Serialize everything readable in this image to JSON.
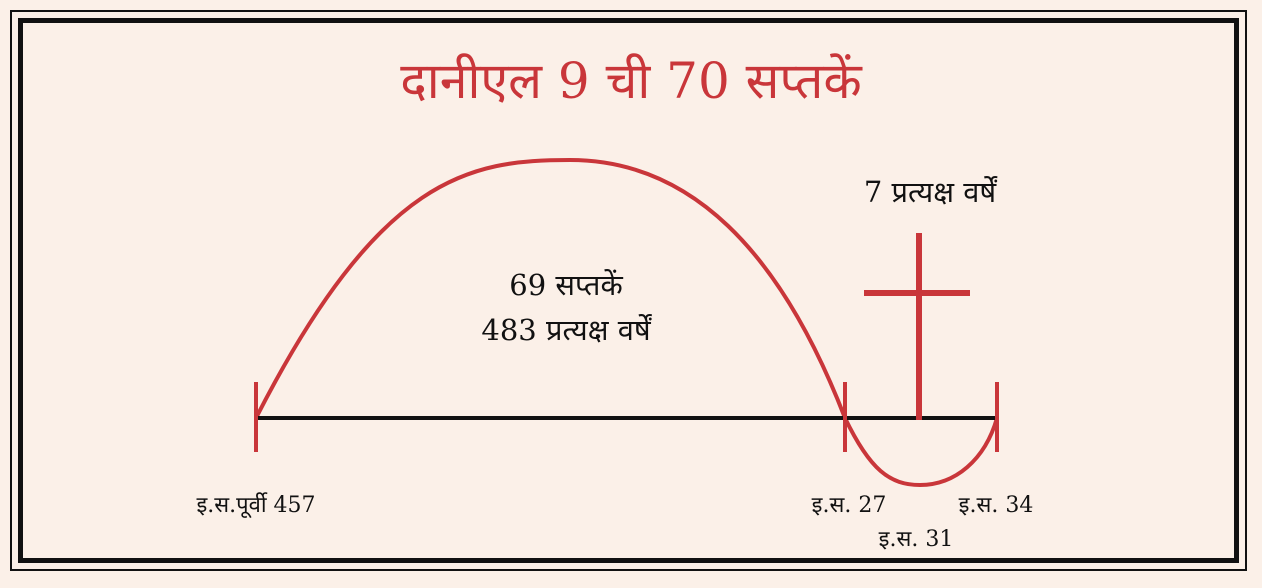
{
  "title": "दानीएल 9 ची 70 सप्तकें",
  "arc_label_line1": "69 सप्तकें",
  "arc_label_line2": "483 प्रत्यक्ष वर्षें",
  "week_label": "7 प्रत्यक्ष वर्षें",
  "dates": {
    "start": "इ.स.पूर्वी 457",
    "baptism": "इ.स. 27",
    "cross": "इ.स. 31",
    "end": "इ.स. 34"
  },
  "colors": {
    "accent": "#c9363a",
    "line": "#111111",
    "background": "#fbf0e8"
  }
}
